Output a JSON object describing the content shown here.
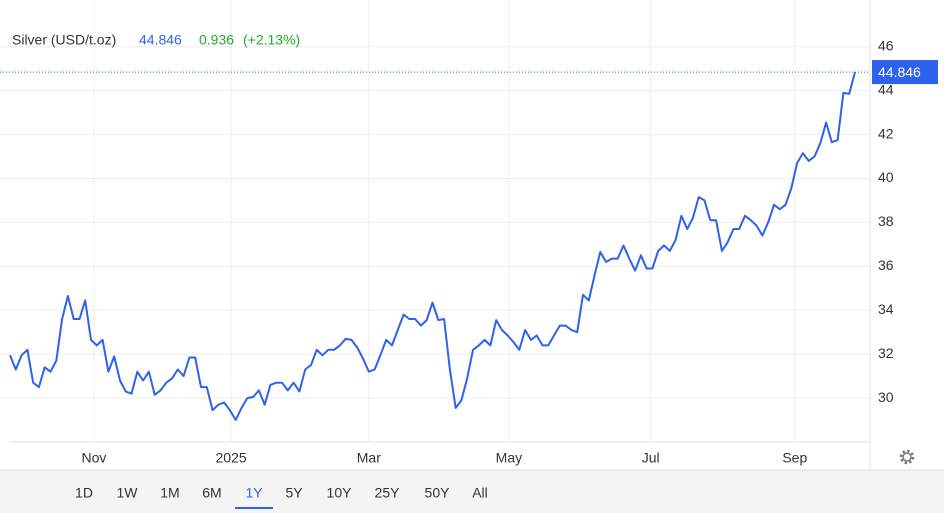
{
  "chart_data": {
    "type": "line",
    "title": "Silver (USD/t.oz)",
    "change": 0.936,
    "change_percent": {
      "value": 2.13,
      "label": "(+2.13%)"
    },
    "color": "#2f62ec",
    "values": [
      31.95,
      31.3,
      31.95,
      32.2,
      30.7,
      30.5,
      31.4,
      31.2,
      31.7,
      33.6,
      34.65,
      33.6,
      33.6,
      34.45,
      32.65,
      32.4,
      32.65,
      31.2,
      31.9,
      30.8,
      30.3,
      30.2,
      31.2,
      30.8,
      31.2,
      30.15,
      30.35,
      30.7,
      30.9,
      31.3,
      31.0,
      31.85,
      31.85,
      30.5,
      30.5,
      29.45,
      29.7,
      29.8,
      29.45,
      29.0,
      29.55,
      30.0,
      30.05,
      30.35,
      29.7,
      30.6,
      30.7,
      30.7,
      30.35,
      30.7,
      30.3,
      31.3,
      31.5,
      32.2,
      31.95,
      32.2,
      32.2,
      32.4,
      32.7,
      32.65,
      32.3,
      31.8,
      31.2,
      31.3,
      31.95,
      32.65,
      32.4,
      33.1,
      33.8,
      33.6,
      33.6,
      33.3,
      33.55,
      34.35,
      33.55,
      33.6,
      31.3,
      29.55,
      29.9,
      30.9,
      32.2,
      32.4,
      32.65,
      32.4,
      33.55,
      33.1,
      32.85,
      32.55,
      32.2,
      33.1,
      32.65,
      32.85,
      32.4,
      32.4,
      32.85,
      33.3,
      33.3,
      33.1,
      33.0,
      34.7,
      34.45,
      35.6,
      36.65,
      36.2,
      36.35,
      36.35,
      36.95,
      36.35,
      35.8,
      36.5,
      35.9,
      35.9,
      36.7,
      36.95,
      36.7,
      37.2,
      38.3,
      37.7,
      38.2,
      39.15,
      39.0,
      38.1,
      38.1,
      36.7,
      37.1,
      37.7,
      37.7,
      38.3,
      38.1,
      37.85,
      37.4,
      38.0,
      38.8,
      38.6,
      38.8,
      39.55,
      40.7,
      41.15,
      40.8,
      41.0,
      41.6,
      42.55,
      41.65,
      41.75,
      43.9,
      43.85,
      44.846
    ],
    "xlim": [
      0,
      146
    ],
    "xticks": [
      {
        "value": 14.5,
        "label": "Nov"
      },
      {
        "value": 38.2,
        "label": "2025"
      },
      {
        "value": 62,
        "label": "Mar"
      },
      {
        "value": 86.2,
        "label": "May"
      },
      {
        "value": 110.7,
        "label": "Jul"
      },
      {
        "value": 135.6,
        "label": "Sep"
      }
    ],
    "ylim": [
      28,
      47.9
    ],
    "yticks": [
      30,
      32,
      34,
      36,
      38,
      40,
      42,
      44,
      46
    ],
    "grid": true,
    "range_buttons": [
      "1D",
      "1W",
      "1M",
      "6M",
      "1Y",
      "5Y",
      "10Y",
      "25Y",
      "50Y",
      "All"
    ],
    "selected_range": "1Y"
  }
}
